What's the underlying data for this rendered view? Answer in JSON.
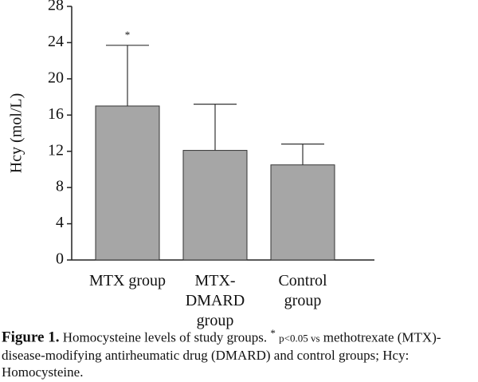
{
  "chart_data": {
    "type": "bar",
    "y_label": "Hcy (mol/L)",
    "categories": [
      "MTX group",
      "MTX-DMARD group",
      "Control group"
    ],
    "values": [
      17.0,
      12.1,
      10.5
    ],
    "errors": [
      6.7,
      5.1,
      2.3
    ],
    "color": "#a6a6a6",
    "annotation": "*",
    "ylim": [
      0,
      28
    ],
    "yticks": [
      0,
      4,
      8,
      12,
      16,
      20,
      24,
      28
    ]
  },
  "caption": {
    "label": "Figure 1.",
    "text": "Homocysteine levels of study groups.",
    "marker": "*",
    "note": "p<0.05 vs",
    "text2": "methotrexate (MTX)-disease-modifying antirheumatic drug (DMARD) and control groups; Hcy: Homocysteine."
  }
}
